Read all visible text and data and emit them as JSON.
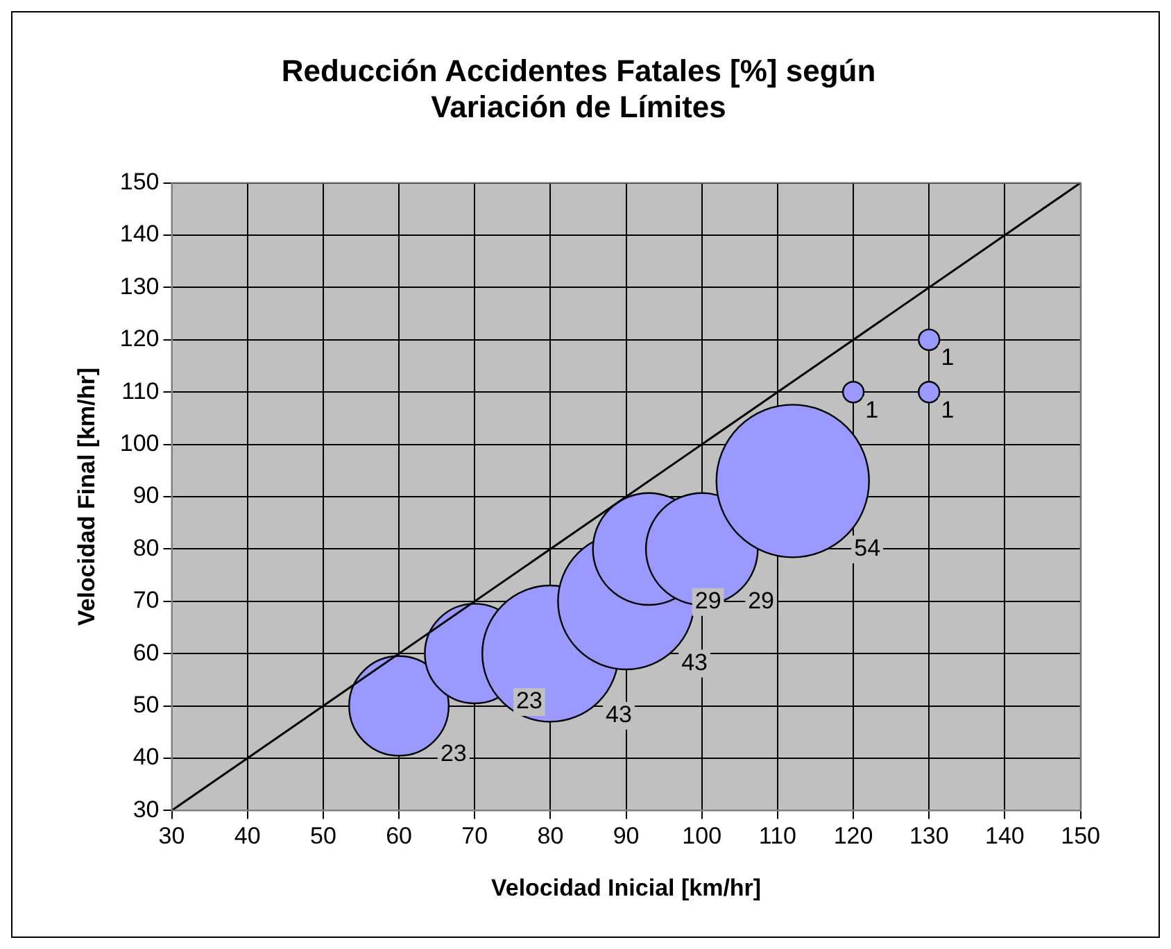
{
  "chart_data": {
    "type": "bubble",
    "title": "Reducción Accidentes Fatales [%] según\nVariación de Límites",
    "xlabel": "Velocidad Inicial [km/hr]",
    "ylabel": "Velocidad Final [km/hr]",
    "series": [
      {
        "type": "bubble",
        "color": "#9999ff",
        "x": [
          60,
          70,
          80,
          90,
          93,
          100,
          112,
          120,
          130,
          130
        ],
        "values": [
          50,
          60,
          60,
          70,
          80,
          80,
          93,
          110,
          110,
          120
        ],
        "sizes": [
          23,
          23,
          43,
          43,
          29,
          29,
          54,
          1,
          1,
          1
        ],
        "value_labels": [
          "23",
          "23",
          "43",
          "43",
          "29",
          "29",
          "54",
          "1",
          "1",
          "1"
        ]
      },
      {
        "type": "line",
        "color": "#000000",
        "x": [
          30,
          150
        ],
        "values": [
          30,
          150
        ]
      }
    ],
    "xlim": [
      30,
      150
    ],
    "ylim": [
      30,
      150
    ],
    "xticks": [
      30,
      40,
      50,
      60,
      70,
      80,
      90,
      100,
      110,
      120,
      130,
      140,
      150
    ],
    "yticks": [
      30,
      40,
      50,
      60,
      70,
      80,
      90,
      100,
      110,
      120,
      130,
      140,
      150
    ],
    "grid": true,
    "legend": false
  }
}
